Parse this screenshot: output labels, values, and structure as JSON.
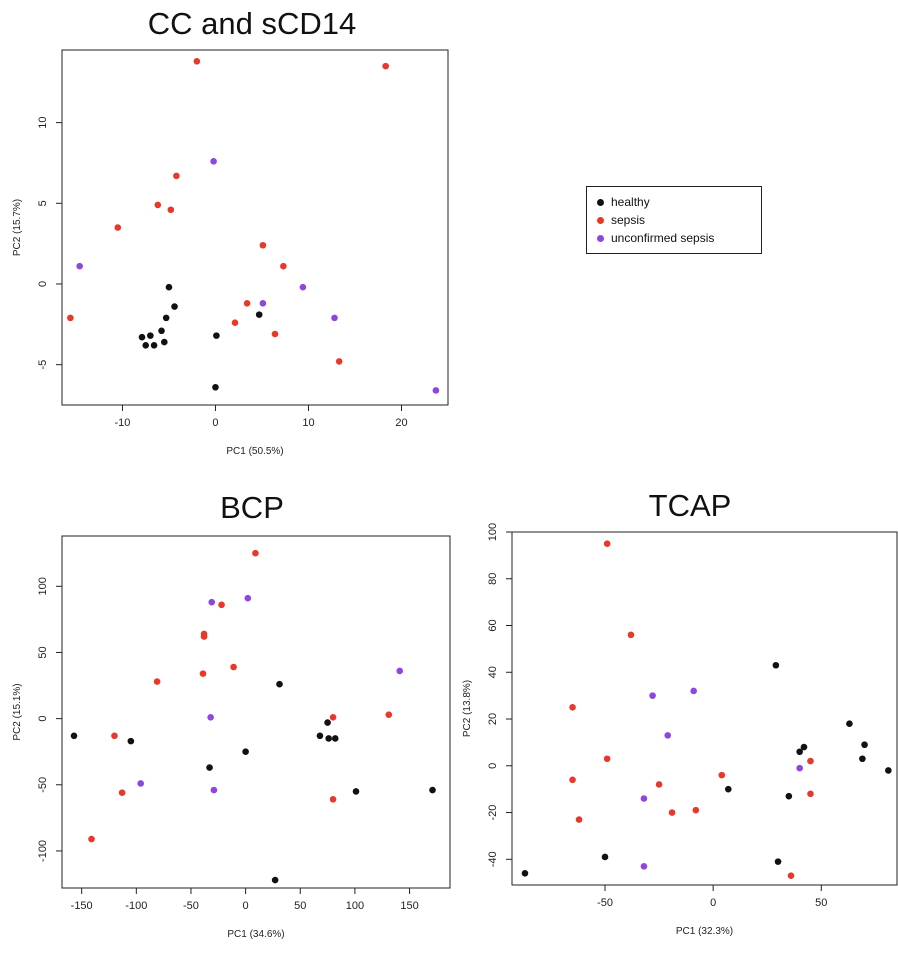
{
  "colors": {
    "healthy": "#111111",
    "sepsis": "#e8382a",
    "unconfirmed sepsis": "#8f46e0"
  },
  "legend": {
    "items": [
      "healthy",
      "sepsis",
      "unconfirmed sepsis"
    ]
  },
  "chart_data": [
    {
      "type": "scatter",
      "title": "CC and sCD14",
      "xlabel": "PC1 (50.5%)",
      "ylabel": "PC2 (15.7%)",
      "xlim": [
        -16.5,
        25
      ],
      "ylim": [
        -7.5,
        14.5
      ],
      "xticks": [
        -10,
        0,
        10,
        20
      ],
      "yticks": [
        -5,
        0,
        5,
        10
      ],
      "grid": false,
      "legend_position": "right, outside plot",
      "series": [
        {
          "name": "healthy",
          "points": [
            [
              -5,
              -0.2
            ],
            [
              -4.4,
              -1.4
            ],
            [
              4.7,
              -1.9
            ],
            [
              -5.3,
              -2.1
            ],
            [
              -5.8,
              -2.9
            ],
            [
              -7.9,
              -3.3
            ],
            [
              -7.0,
              -3.2
            ],
            [
              -7.5,
              -3.8
            ],
            [
              -6.6,
              -3.8
            ],
            [
              -5.5,
              -3.6
            ],
            [
              0.1,
              -3.2
            ],
            [
              0,
              -6.4
            ]
          ]
        },
        {
          "name": "sepsis",
          "points": [
            [
              -2,
              13.8
            ],
            [
              18.3,
              13.5
            ],
            [
              -4.2,
              6.7
            ],
            [
              -6.2,
              4.9
            ],
            [
              -4.8,
              4.6
            ],
            [
              -10.5,
              3.5
            ],
            [
              5.1,
              2.4
            ],
            [
              7.3,
              1.1
            ],
            [
              3.4,
              -1.2
            ],
            [
              2.1,
              -2.4
            ],
            [
              6.4,
              -3.1
            ],
            [
              13.3,
              -4.8
            ],
            [
              -15.6,
              -2.1
            ]
          ]
        },
        {
          "name": "unconfirmed sepsis",
          "points": [
            [
              -0.2,
              7.6
            ],
            [
              -14.6,
              1.1
            ],
            [
              9.4,
              -0.2
            ],
            [
              5.1,
              -1.2
            ],
            [
              12.8,
              -2.1
            ],
            [
              23.7,
              -6.6
            ]
          ]
        }
      ]
    },
    {
      "type": "scatter",
      "title": "BCP",
      "xlabel": "PC1 (34.6%)",
      "ylabel": "PC2 (15.1%)",
      "xlim": [
        -168,
        187
      ],
      "ylim": [
        -128,
        138
      ],
      "xticks": [
        -150,
        -100,
        -50,
        0,
        50,
        100,
        150
      ],
      "yticks": [
        -100,
        -50,
        0,
        50,
        100
      ],
      "grid": false,
      "series": [
        {
          "name": "healthy",
          "points": [
            [
              -157,
              -13
            ],
            [
              -105,
              -17
            ],
            [
              -33,
              -37
            ],
            [
              0,
              -25
            ],
            [
              31,
              26
            ],
            [
              68,
              -13
            ],
            [
              75,
              -3
            ],
            [
              76,
              -15
            ],
            [
              82,
              -15
            ],
            [
              101,
              -55
            ],
            [
              171,
              -54
            ],
            [
              27,
              -122
            ]
          ]
        },
        {
          "name": "sepsis",
          "points": [
            [
              9,
              125
            ],
            [
              -22,
              86
            ],
            [
              -38,
              64
            ],
            [
              -38,
              62
            ],
            [
              -39,
              34
            ],
            [
              -11,
              39
            ],
            [
              -81,
              28
            ],
            [
              -120,
              -13
            ],
            [
              -113,
              -56
            ],
            [
              -141,
              -91
            ],
            [
              80,
              1
            ],
            [
              131,
              3
            ],
            [
              80,
              -61
            ]
          ]
        },
        {
          "name": "unconfirmed sepsis",
          "points": [
            [
              -31,
              88
            ],
            [
              2,
              91
            ],
            [
              141,
              36
            ],
            [
              -32,
              1
            ],
            [
              -96,
              -49
            ],
            [
              -29,
              -54
            ]
          ]
        }
      ]
    },
    {
      "type": "scatter",
      "title": "TCAP",
      "xlabel": "PC1 (32.3%)",
      "ylabel": "PC2 (13.8%)",
      "xlim": [
        -93,
        85
      ],
      "ylim": [
        -51,
        100
      ],
      "xticks": [
        -50,
        0,
        50
      ],
      "yticks": [
        -40,
        -20,
        0,
        20,
        40,
        60,
        80,
        100
      ],
      "grid": false,
      "series": [
        {
          "name": "healthy",
          "points": [
            [
              -87,
              -46
            ],
            [
              -50,
              -39
            ],
            [
              7,
              -10
            ],
            [
              29,
              43
            ],
            [
              30,
              -41
            ],
            [
              35,
              -13
            ],
            [
              40,
              6
            ],
            [
              42,
              8
            ],
            [
              63,
              18
            ],
            [
              69,
              3
            ],
            [
              70,
              9
            ],
            [
              81,
              -2
            ]
          ]
        },
        {
          "name": "sepsis",
          "points": [
            [
              -49,
              95
            ],
            [
              -38,
              56
            ],
            [
              -65,
              25
            ],
            [
              -65,
              -6
            ],
            [
              -62,
              -23
            ],
            [
              -49,
              3
            ],
            [
              -25,
              -8
            ],
            [
              -19,
              -20
            ],
            [
              -8,
              -19
            ],
            [
              4,
              -4
            ],
            [
              36,
              -47
            ],
            [
              45,
              2
            ],
            [
              45,
              -12
            ]
          ]
        },
        {
          "name": "unconfirmed sepsis",
          "points": [
            [
              -28,
              30
            ],
            [
              -9,
              32
            ],
            [
              -21,
              13
            ],
            [
              -32,
              -14
            ],
            [
              -32,
              -43
            ],
            [
              40,
              -1
            ]
          ]
        }
      ]
    }
  ]
}
